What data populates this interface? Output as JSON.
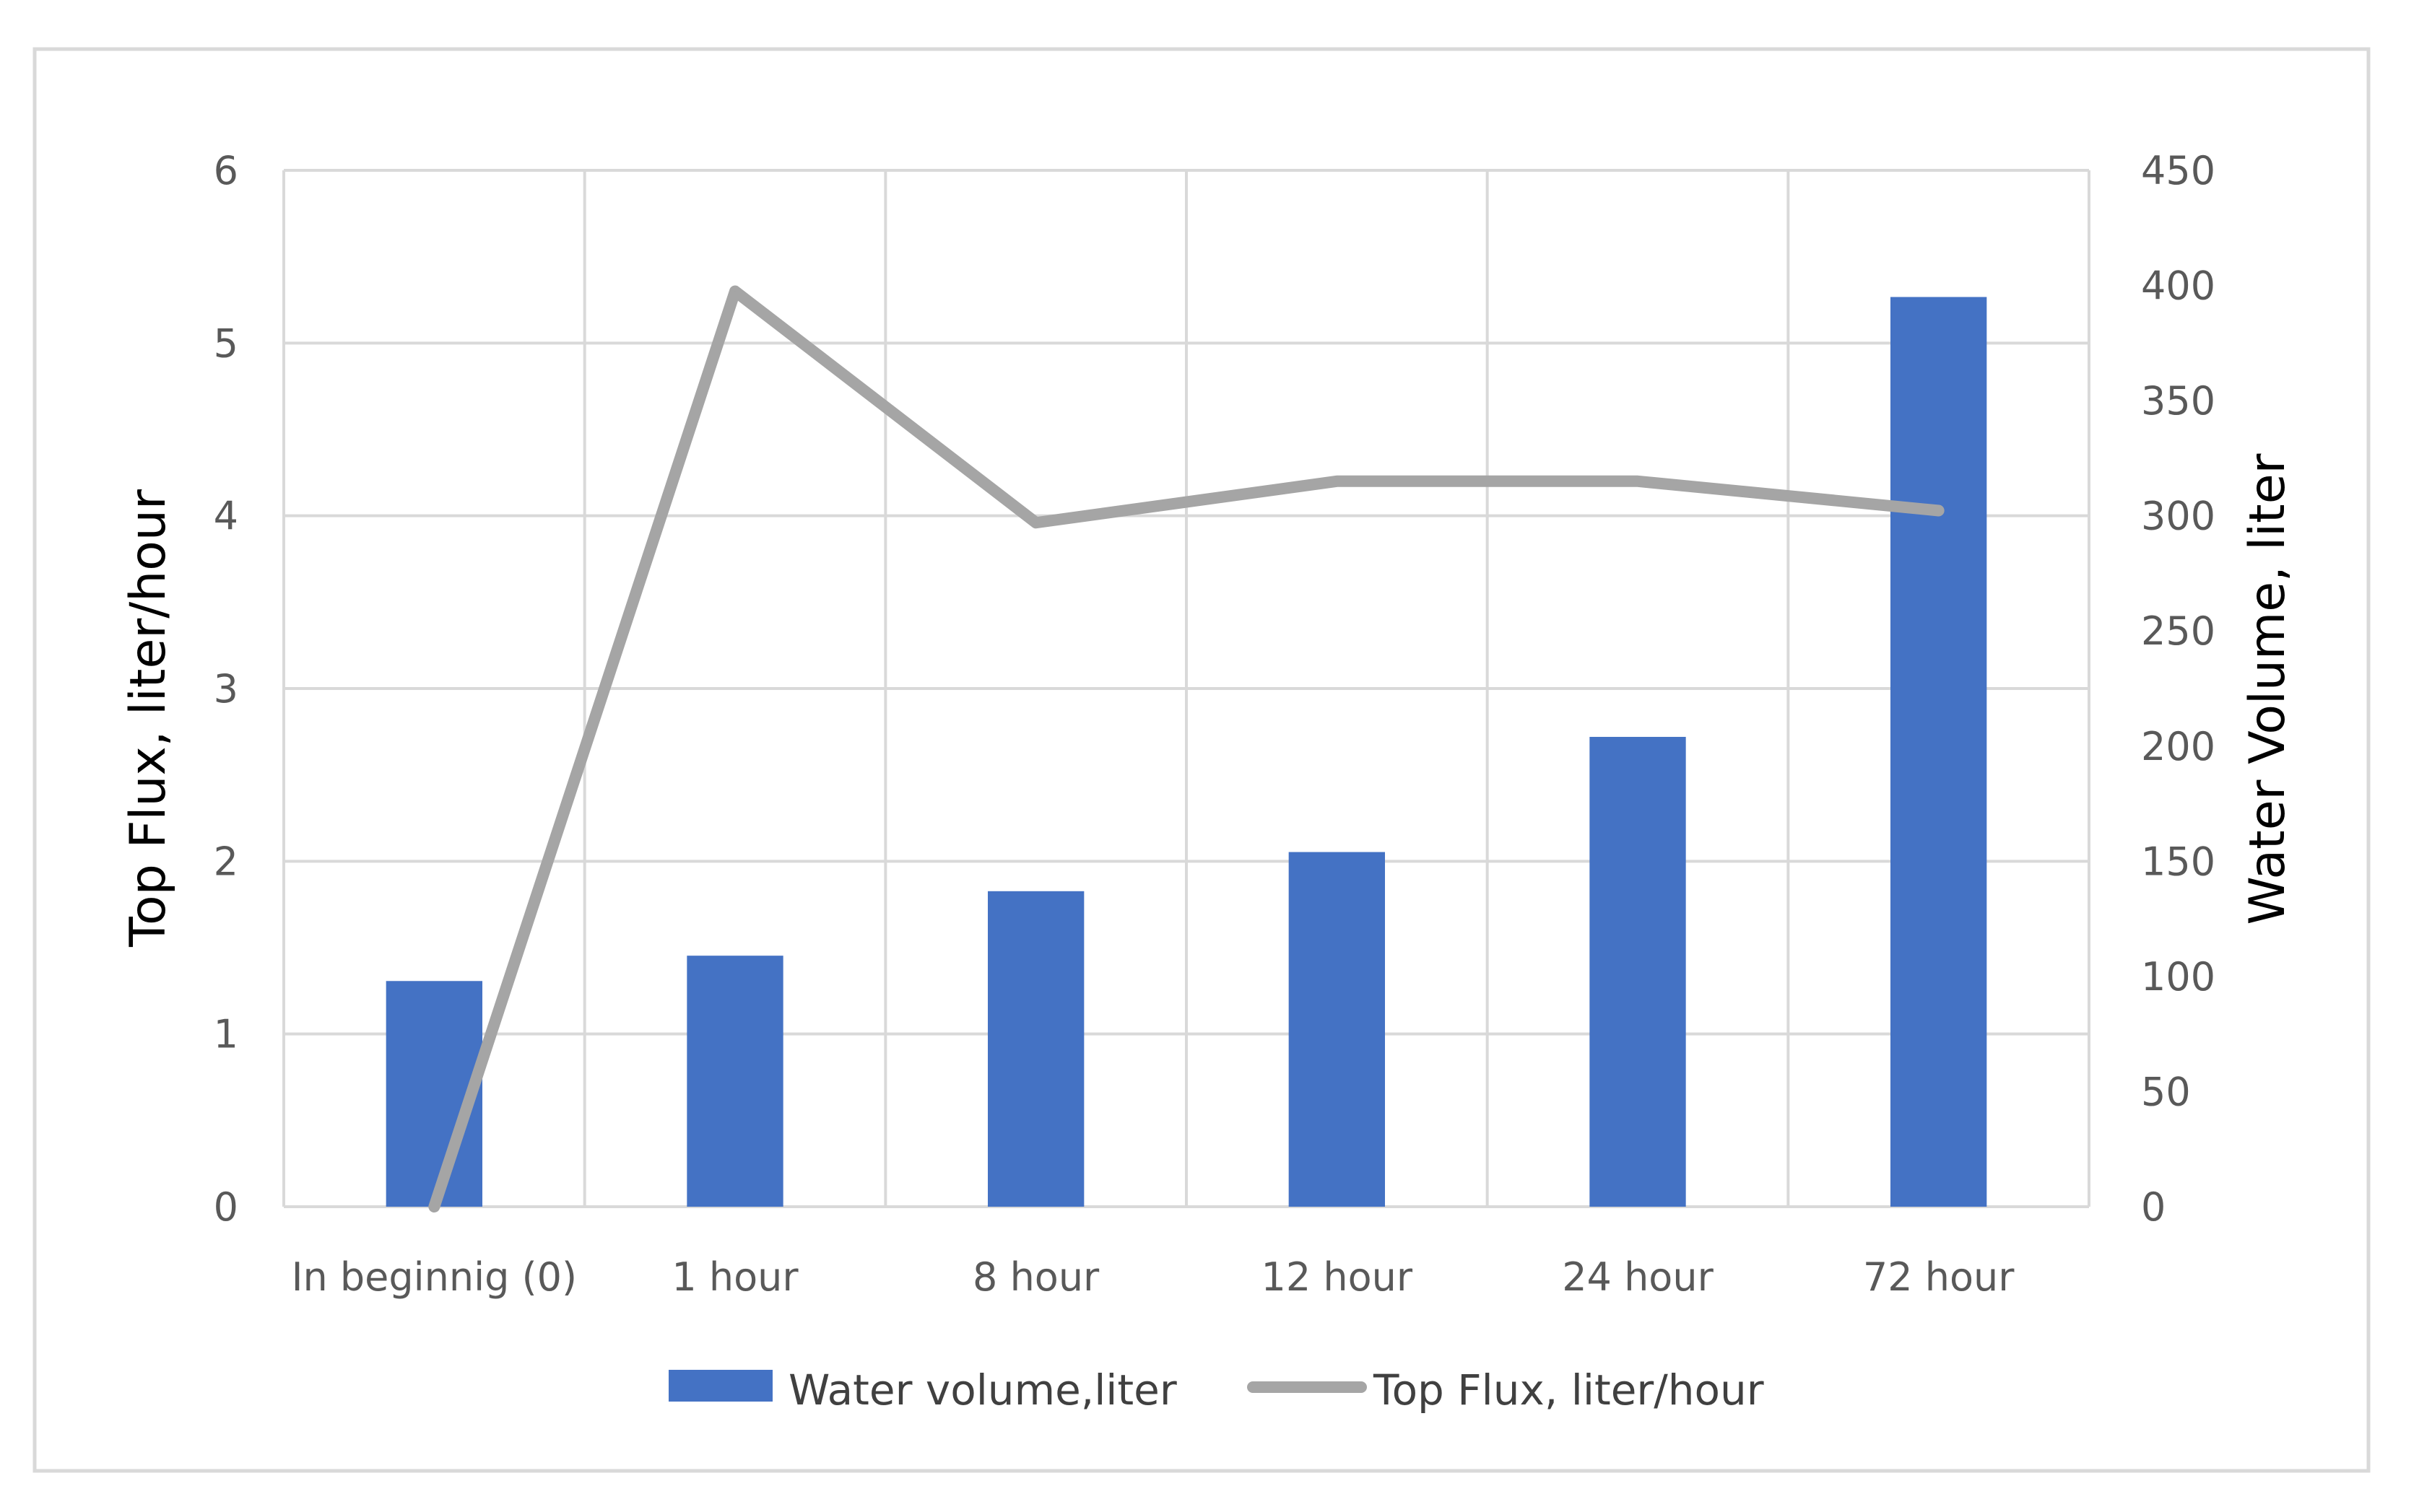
{
  "chart_data": {
    "type": "bar",
    "categories": [
      "In beginnig (0)",
      "1 hour",
      "8 hour",
      "12 hour",
      "24 hour",
      "72 hour"
    ],
    "series": [
      {
        "name": "Water volume,liter",
        "kind": "bar",
        "axis": "right",
        "color": "#4472C4",
        "values": [
          98,
          109,
          137,
          154,
          204,
          395
        ]
      },
      {
        "name": "Top Flux, liter/hour",
        "kind": "line",
        "axis": "left",
        "color": "#A5A5A5",
        "values": [
          0,
          5.3,
          3.96,
          4.2,
          4.2,
          4.03
        ]
      }
    ],
    "y_left": {
      "label": "Top Flux, liter/hour",
      "ylim": [
        0,
        6
      ],
      "ticks": [
        "0",
        "1",
        "2",
        "3",
        "4",
        "5",
        "6"
      ]
    },
    "y_right": {
      "label": "Water Volume, liter",
      "ylim": [
        0,
        450
      ],
      "ticks": [
        "0",
        "50",
        "100",
        "150",
        "200",
        "250",
        "300",
        "350",
        "400",
        "450"
      ]
    },
    "grid": true,
    "legend": "bottom"
  }
}
